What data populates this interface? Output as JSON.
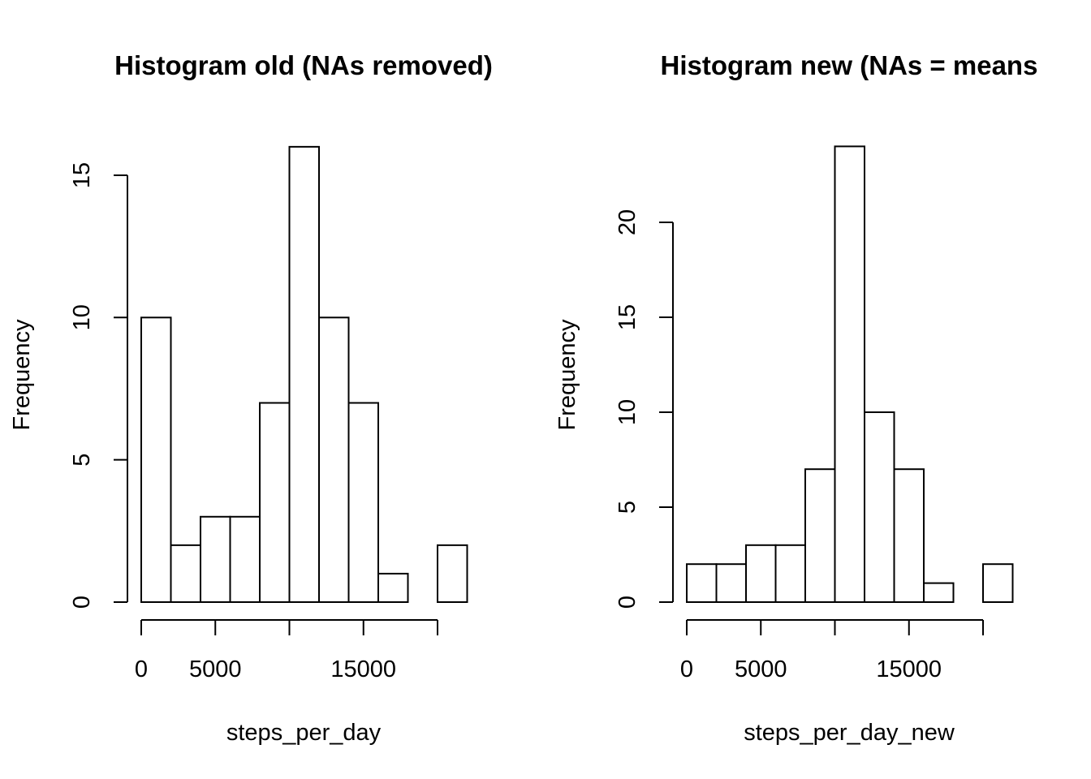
{
  "chart_data": [
    {
      "type": "bar",
      "title": "Histogram old (NAs removed)",
      "xlabel": "steps_per_day",
      "ylabel": "Frequency",
      "bin_edges": [
        0,
        2000,
        4000,
        6000,
        8000,
        10000,
        12000,
        14000,
        16000,
        18000,
        20000,
        22000
      ],
      "values": [
        10,
        2,
        3,
        3,
        7,
        16,
        10,
        7,
        1,
        0,
        2
      ],
      "x_ticks": [
        0,
        5000,
        10000,
        15000,
        20000
      ],
      "x_tick_labels": [
        "0",
        "5000",
        "",
        "15000",
        ""
      ],
      "y_ticks": [
        0,
        5,
        10,
        15
      ],
      "y_tick_labels": [
        "0",
        "5",
        "10",
        "15"
      ],
      "grid": false
    },
    {
      "type": "bar",
      "title": "Histogram new (NAs = means",
      "xlabel": "steps_per_day_new",
      "ylabel": "Frequency",
      "bin_edges": [
        0,
        2000,
        4000,
        6000,
        8000,
        10000,
        12000,
        14000,
        16000,
        18000,
        20000,
        22000
      ],
      "values": [
        2,
        2,
        3,
        3,
        7,
        24,
        10,
        7,
        1,
        0,
        2
      ],
      "x_ticks": [
        0,
        5000,
        10000,
        15000,
        20000
      ],
      "x_tick_labels": [
        "0",
        "5000",
        "",
        "15000",
        ""
      ],
      "y_ticks": [
        0,
        5,
        10,
        15,
        20
      ],
      "y_tick_labels": [
        "0",
        "5",
        "10",
        "15",
        "20"
      ],
      "grid": false
    }
  ]
}
